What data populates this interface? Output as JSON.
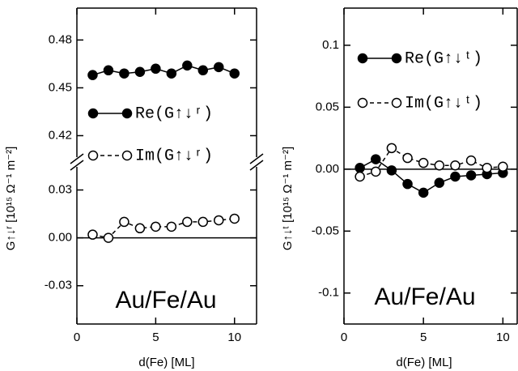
{
  "chart_data": [
    {
      "type": "line",
      "ylabel": "G↑↓ʳ [10¹⁵ Ω⁻¹ m⁻²]",
      "xlabel": "d(Fe) [ML]",
      "annotation": "Au/Fe/Au",
      "x": [
        1,
        2,
        3,
        4,
        5,
        6,
        7,
        8,
        9,
        10
      ],
      "xlim": [
        0,
        11.4
      ],
      "xticks": [
        0,
        5,
        10
      ],
      "ylim": [
        -0.054,
        0.046
      ],
      "yticks": [
        -0.03,
        {
          "value": 0,
          "label": "0.00"
        },
        0.03
      ],
      "ylim_upper": [
        0.405,
        0.5
      ],
      "yticks_upper": [
        0.42,
        0.45,
        0.48
      ],
      "zero_line": true,
      "series": [
        {
          "name": "Re(G↑↓ʳ)",
          "color": "#000000",
          "marker_fill": "#000000",
          "dashed": false,
          "axis": "upper",
          "values": [
            0.458,
            0.461,
            0.459,
            0.46,
            0.462,
            0.459,
            0.464,
            0.461,
            0.463,
            0.459
          ]
        },
        {
          "name": "Im(G↑↓ʳ)",
          "color": "#000000",
          "marker_fill": "#ffffff",
          "dashed": true,
          "values": [
            0.002,
            0.0,
            0.01,
            0.006,
            0.007,
            0.007,
            0.01,
            0.01,
            0.011,
            0.012
          ]
        }
      ]
    },
    {
      "type": "line",
      "ylabel": "G↑↓ᵗ [10¹⁵ Ω⁻¹ m⁻²]",
      "xlabel": "d(Fe) [ML]",
      "annotation": "Au/Fe/Au",
      "x": [
        1,
        2,
        3,
        4,
        5,
        6,
        7,
        8,
        9,
        10
      ],
      "xlim": [
        0,
        10.9
      ],
      "xticks": [
        0,
        5,
        10
      ],
      "ylim": [
        -0.125,
        0.13
      ],
      "yticks": [
        -0.1,
        -0.05,
        {
          "value": 0,
          "label": "0.00"
        },
        0.05,
        0.1
      ],
      "zero_line": true,
      "series": [
        {
          "name": "Re(G↑↓ᵗ)",
          "color": "#000000",
          "marker_fill": "#000000",
          "dashed": false,
          "values": [
            0.001,
            0.008,
            -0.001,
            -0.012,
            -0.019,
            -0.011,
            -0.006,
            -0.005,
            -0.004,
            -0.003
          ]
        },
        {
          "name": "Im(G↑↓ᵗ)",
          "color": "#000000",
          "marker_fill": "#ffffff",
          "dashed": true,
          "values": [
            -0.006,
            -0.002,
            0.017,
            0.009,
            0.005,
            0.003,
            0.003,
            0.007,
            0.001,
            0.002
          ]
        }
      ]
    }
  ]
}
